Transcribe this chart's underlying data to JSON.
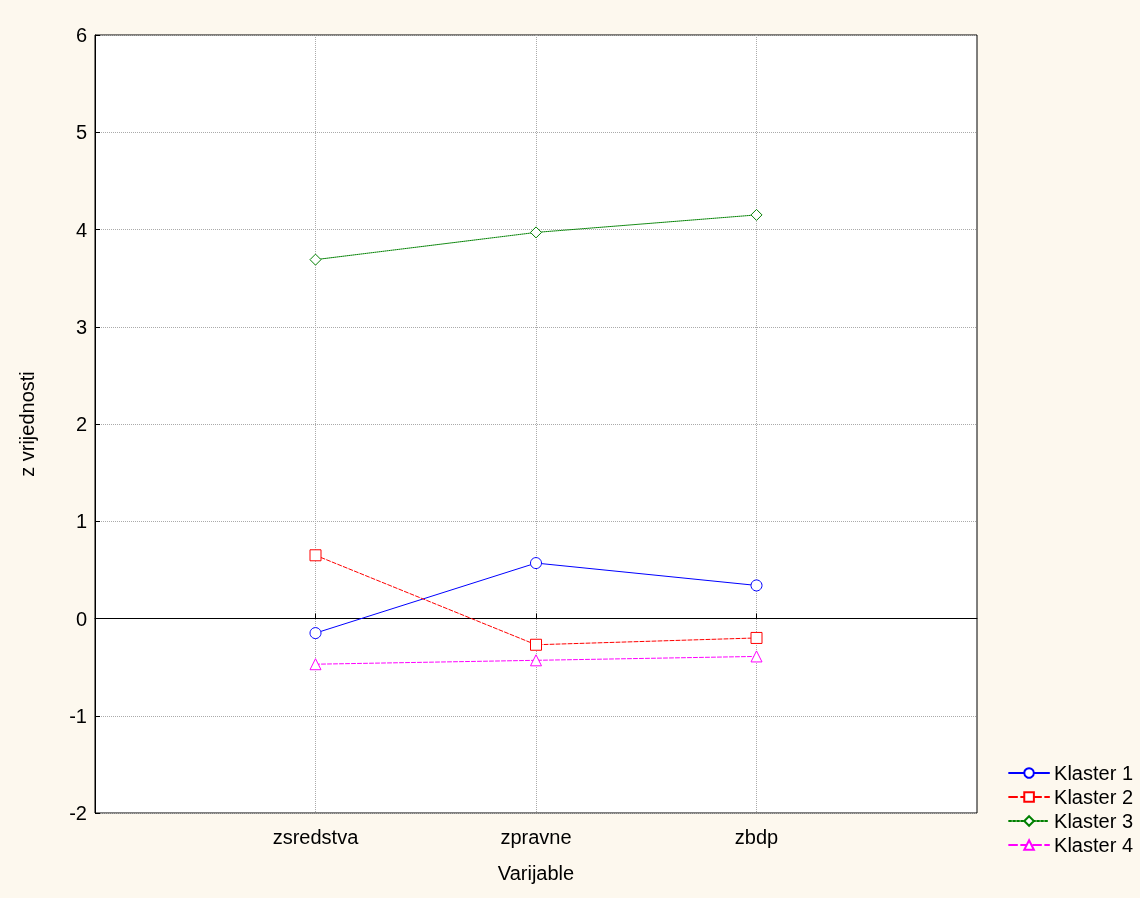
{
  "chart_data": {
    "type": "line",
    "xlabel": "Varijable",
    "ylabel": "z vrijednosti",
    "categories": [
      null,
      "zsredstva",
      "zpravne",
      "zbdp",
      null
    ],
    "series": [
      {
        "name": "Klaster 1",
        "color": "#0000ff",
        "marker": "circle",
        "line_style": "solid",
        "values": [
          null,
          -0.15,
          0.57,
          0.34,
          null
        ]
      },
      {
        "name": "Klaster 2",
        "color": "#ff0000",
        "marker": "square",
        "line_style": "dashed",
        "values": [
          null,
          0.65,
          -0.27,
          -0.2,
          null
        ]
      },
      {
        "name": "Klaster 3",
        "color": "#008000",
        "marker": "diamond",
        "line_style": "dotted",
        "values": [
          null,
          3.69,
          3.97,
          4.15,
          null
        ]
      },
      {
        "name": "Klaster 4",
        "color": "#ff00ff",
        "marker": "triangle",
        "line_style": "dashed",
        "values": [
          null,
          -0.47,
          -0.43,
          -0.39,
          null
        ]
      }
    ],
    "ylim": [
      -2,
      6
    ],
    "yticks": [
      -2,
      -1,
      0,
      1,
      2,
      3,
      4,
      5,
      6
    ],
    "grid": true,
    "legend": "bottom right"
  }
}
